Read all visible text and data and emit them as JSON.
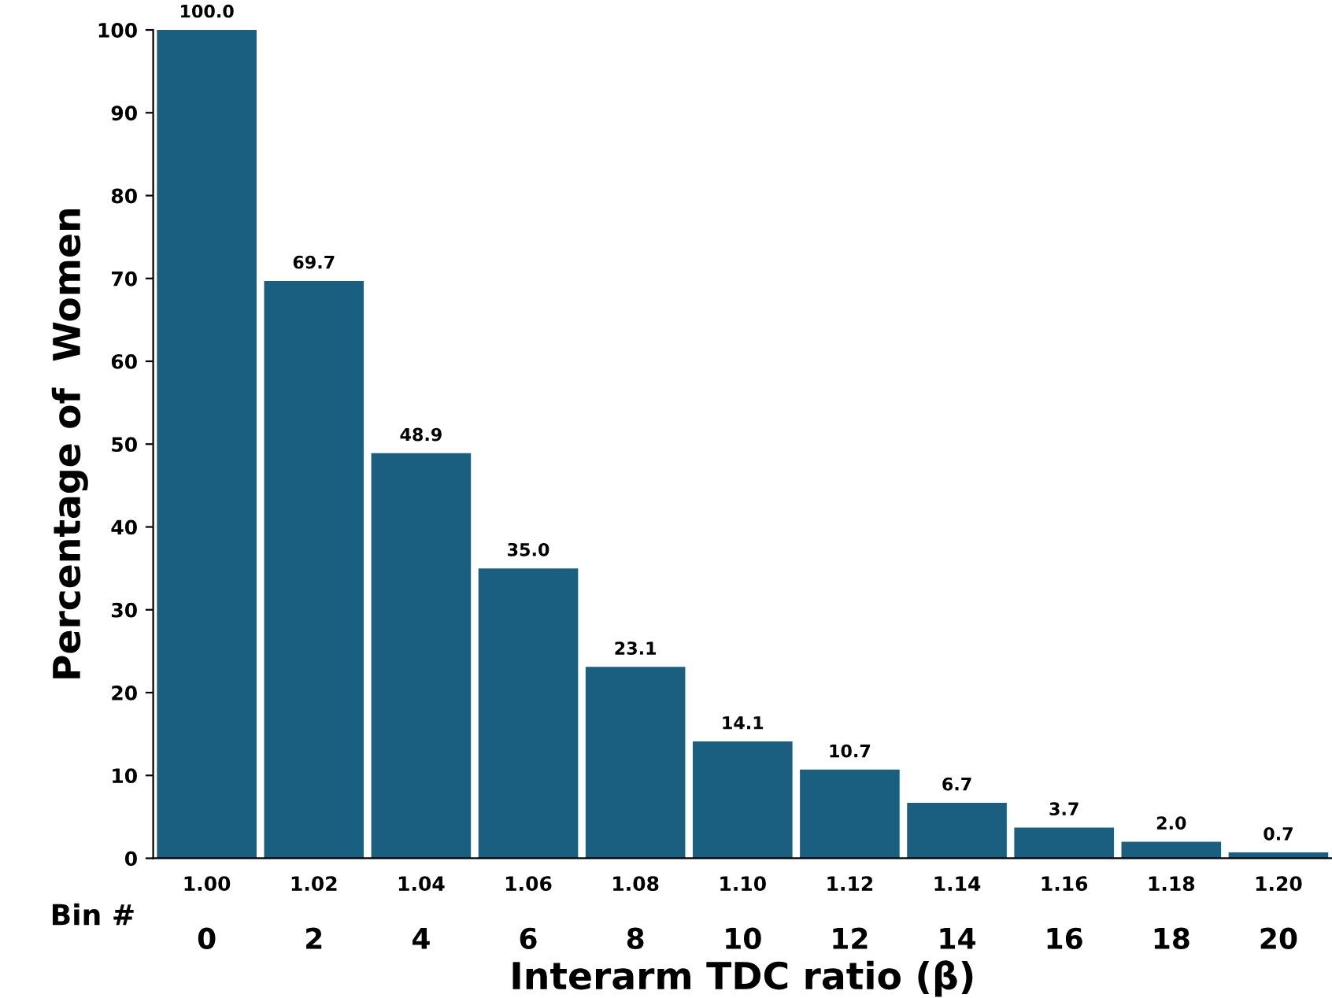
{
  "chart_data": {
    "type": "bar",
    "xlabel": "Interarm TDC ratio (β)",
    "ylabel": "Percentage of  Women",
    "categories": [
      "1.00",
      "1.02",
      "1.04",
      "1.06",
      "1.08",
      "1.10",
      "1.12",
      "1.14",
      "1.16",
      "1.18",
      "1.20"
    ],
    "values": [
      100.0,
      69.7,
      48.9,
      35.0,
      23.1,
      14.1,
      10.7,
      6.7,
      3.7,
      2.0,
      0.7
    ],
    "color": "#1b5f80",
    "value_labels": [
      "100.0",
      "69.7",
      "48.9",
      "35.0",
      "23.1",
      "14.1",
      "10.7",
      "6.7",
      "3.7",
      "2.0",
      "0.7"
    ],
    "ylim": [
      0,
      100
    ],
    "yticks": [
      0,
      10,
      20,
      30,
      40,
      50,
      60,
      70,
      80,
      90,
      100
    ],
    "x2label": "Bin #",
    "x2lim": [
      -1,
      21
    ],
    "x2ticks": [
      0,
      2,
      4,
      6,
      8,
      10,
      12,
      14,
      16,
      18,
      20
    ],
    "grid": false,
    "legend": false
  }
}
